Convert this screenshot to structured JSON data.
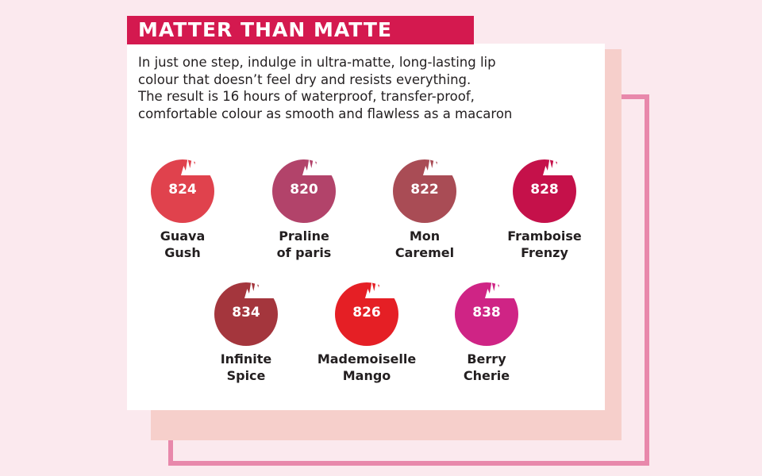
{
  "title": "MATTER THAN MATTE",
  "description_lines": [
    "In just one step, indulge in ultra-matte, long-lasting lip",
    "colour that doesn’t feel dry and resists everything.",
    "The result is 16 hours of waterproof, transfer-proof,",
    "comfortable colour as smooth and flawless as a macaron"
  ],
  "colors": {
    "page_background": "#fbe9ee",
    "title_banner": "#d4194f",
    "outline_frame": "#e888ab",
    "peach_block": "#f6cfcb"
  },
  "shades": [
    {
      "code": "824",
      "name_lines": [
        "Guava",
        "Gush"
      ],
      "color": "#e0424d"
    },
    {
      "code": "820",
      "name_lines": [
        "Praline",
        "of paris"
      ],
      "color": "#b2436a"
    },
    {
      "code": "822",
      "name_lines": [
        "Mon",
        "Caremel"
      ],
      "color": "#a94c55"
    },
    {
      "code": "828",
      "name_lines": [
        "Framboise",
        "Frenzy"
      ],
      "color": "#c5114a"
    },
    {
      "code": "834",
      "name_lines": [
        "Infinite",
        "Spice"
      ],
      "color": "#a4363d"
    },
    {
      "code": "826",
      "name_lines": [
        "Mademoiselle",
        "Mango"
      ],
      "color": "#e51f25"
    },
    {
      "code": "838",
      "name_lines": [
        "Berry",
        "Cherie"
      ],
      "color": "#cf2485"
    }
  ]
}
